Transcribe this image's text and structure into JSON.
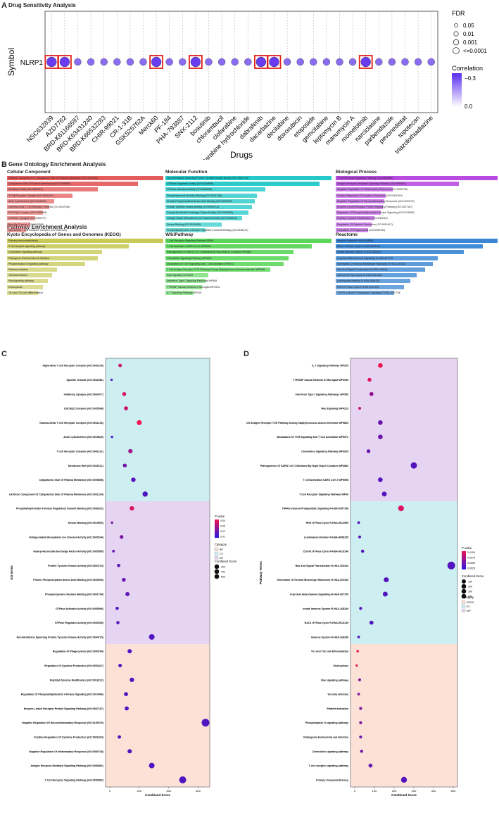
{
  "panelA": {
    "letter": "A",
    "title": "Drug Sensitivity Analysis",
    "ylabel": "Symbol",
    "xlabel": "Drugs",
    "gene": "NLRP1",
    "legend_fdr_title": "FDR",
    "legend_fdr_items": [
      "0.05",
      "0.01",
      "0.001",
      "<=0.0001"
    ],
    "legend_corr_title": "Correlation",
    "legend_corr_ticks": [
      "−0.3",
      "0.0"
    ]
  },
  "chart_data": [
    {
      "type": "scatter",
      "panel": "A",
      "title": "Drug Sensitivity Analysis",
      "xlabel": "Drugs",
      "ylabel": "Symbol",
      "y_categories": [
        "NLRP1"
      ],
      "categories": [
        "NSC632839",
        "AZD7762",
        "BRD-K61166597",
        "BRD-K63431240",
        "BRD-K66532283",
        "CHIR-99021",
        "CR-1-31B",
        "GSK525762A",
        "Merck60",
        "PF-184",
        "PHA-793887",
        "SNX-2112",
        "bosutinib",
        "chlorambucil",
        "clofarabine",
        "cytarabine hydrochloride",
        "dabrafenib",
        "dacarbazine",
        "decitabine",
        "doxorubicin",
        "etoposide",
        "gemcitabine",
        "leptomycin B",
        "manumycin A",
        "momelotinib",
        "narciclasine",
        "parbendazole",
        "pevonedistat",
        "topotecan",
        "triazolothiadiazine"
      ],
      "highlighted": [
        "NSC632839",
        "AZD7762",
        "Merck60",
        "SNX-2112",
        "dabrafenib",
        "dacarbazine",
        "momelotinib"
      ],
      "legend": {
        "fdr": [
          "0.05",
          "0.01",
          "0.001",
          "<=0.0001"
        ],
        "correlation_range": [
          -0.3,
          0.0
        ]
      },
      "grid": true
    },
    {
      "type": "bar",
      "panel": "B",
      "title": "Cellular Component",
      "categories": [
        "Extrinsic Component Of Cytoplasmic Side Of Plasma Membrane (GO:0031234)",
        "Cytoplasmic Side Of Plasma Membrane (GO:0009898)",
        "Membrane Raft (GO:0045121)",
        "T Cell Receptor Complex (GO:0042101)",
        "Actin Cytoskeleton (GO:0015629)",
        "Gamma-Delta T Cell Receptor Complex (GO:0042106)",
        "ESC/E(Z) Complex (GO:0035098)",
        "Inhibitory Synapse (GO:0060077)",
        "Specific Granule (GO:0042581)",
        "Alpha-Beta T Cell Receptor Complex (GO:0042105)"
      ],
      "values": [
        1.0,
        0.84,
        0.58,
        0.42,
        0.3,
        0.27,
        0.23,
        0.18,
        0.15,
        0.12
      ]
    },
    {
      "type": "bar",
      "panel": "B",
      "title": "Molecular Function",
      "categories": [
        "Non-Membrane Spanning Protein Tyrosine Kinase Activity (GO:0004715)",
        "GTPase Regulator Activity (GO:0030695)",
        "GTPase Activator Activity (GO:0005096)",
        "Phosphotyrosine Residue Binding (GO:0001784)",
        "Protein Phosphorylated Amino Acid Binding (GO:0045309)",
        "Protein Tyrosine Kinase Activity (GO:0004713)",
        "Guanyl-Nucleotide Exchange Factor Activity (GO:0005085)",
        "Voltage-Gated Monoatomic Ion Channel Activity (GO:0005244)",
        "Kinase Binding (GO:0019900)",
        "Phosphatidylinositol 3-Kinase Regulatory Subunit Binding (GO:0036312)"
      ],
      "values": [
        1.0,
        0.93,
        0.6,
        0.55,
        0.54,
        0.52,
        0.5,
        0.46,
        0.34,
        0.24
      ]
    },
    {
      "type": "bar",
      "panel": "B",
      "title": "Biological Process",
      "categories": [
        "T Cell Receptor Signaling Pathway (GO:0050852)",
        "Antigen Receptor-Mediated Signaling Pathway (GO:0050851)",
        "Negative Regulation Of Inflammatory Response (GO:0050728)",
        "Positive Regulation Of Cytokine Production (GO:0001819)",
        "Negative Regulation Of Neuroinflammatory Response (GO:0150079)",
        "Enzyme-Linked Receptor Protein Signaling Pathway (GO:0007167)",
        "Regulation Of Phosphatidylinositol 3-Kinase Signaling (GO:0014066)",
        "Peptidyl-Tyrosine Modification (GO:0018212)",
        "Regulation Of Cytokine Production (GO:0001817)",
        "Regulation Of Phagocytosis (GO:0050764)"
      ],
      "values": [
        1.0,
        0.76,
        0.35,
        0.31,
        0.3,
        0.29,
        0.28,
        0.24,
        0.22,
        0.2
      ]
    },
    {
      "type": "bar",
      "panel": "B",
      "title": "Kyoto Encyclopedia of Genes and Genomes (KEGG)",
      "categories": [
        "Primary immunodeficiency",
        "T cell receptor signaling pathway",
        "Chemokine signaling pathway",
        "Pathogenic Escherichia coli infection",
        "Phospholipase D signaling pathway",
        "Platelet activation",
        "Yersinia infection",
        "Ras signaling pathway",
        "Endocytosis",
        "Th1 and Th2 cell differentiation"
      ],
      "values": [
        1.0,
        0.78,
        0.61,
        0.58,
        0.5,
        0.32,
        0.29,
        0.26,
        0.23,
        0.2
      ]
    },
    {
      "type": "bar",
      "panel": "B",
      "title": "WikiPathway",
      "categories": [
        "T Cell Receptor Signaling Pathway WP69",
        "T Cell Activation SARS CoV 2 WP5098",
        "Pathogenesis Of SARS CoV 2 Mediated By Nsp9 Nsp10 Complex WP4884",
        "Chemokine Signaling Pathway WP3929",
        "Modulators Of TCR Signaling And T Cell Activation WP5072",
        "T Cell Antigen Receptor TCR Pathway During Staphylococcus Aureus Infection WP3863",
        "Ras Signaling WP4223",
        "Interferon Type I Signaling Pathways WP585",
        "TYROBP Causal Network In Microglia WP3945",
        "IL 7 Signaling Pathway WP205"
      ],
      "values": [
        1.0,
        0.88,
        0.77,
        0.74,
        0.71,
        0.63,
        0.26,
        0.24,
        0.22,
        0.17
      ]
    },
    {
      "type": "bar",
      "panel": "B",
      "title": "Reactome",
      "categories": [
        "Immune System R-HSA-168256",
        "RAC1 GTPase Cycle R-HSA-9013149",
        "Innate Immune System R-HSA-168249",
        "G-protein Beta:Gamma Signalling R-HSA-397795",
        "Generation Of Second Messenger Molecules R-HSA-202433",
        "Ras And Signal Transduction R-HSA-166444",
        "CDC42 GTPase Cycle R-HSA-9013148",
        "Leishmania Infection R-HSA-9658195",
        "RHO GTPase Cycle R-HSA-9012999",
        "TNFR1-induced Proapoptotic Signaling R-HSA-5357786"
      ],
      "values": [
        1.0,
        0.91,
        0.79,
        0.63,
        0.6,
        0.55,
        0.5,
        0.46,
        0.42,
        0.36
      ]
    },
    {
      "type": "scatter",
      "panel": "C",
      "xlabel": "Combined Score",
      "ylabel": "GO terms",
      "xlim": [
        0,
        650
      ],
      "x_ticks": [
        "0",
        "200",
        "400",
        "600"
      ],
      "series": [
        {
          "name": "CC",
          "labels": [
            "Alpha-Beta T Cell Receptor Complex (GO:0042105)",
            "Specific Granule (GO:0042581)",
            "Inhibitory Synapse (GO:0060077)",
            "ESC/E(Z) Complex (GO:0035098)",
            "Gamma-Delta T Cell Receptor Complex (GO:0042106)",
            "Actin Cytoskeleton (GO:0015629)",
            "T Cell Receptor Complex (GO:0042101)",
            "Membrane Raft (GO:0045121)",
            "Cytoplasmic Side Of Plasma Membrane (GO:0009898)",
            "Extrinsic Component Of Cytoplasmic Side Of Plasma Membrane (GO:0031234)"
          ],
          "x": [
            70,
            12,
            98,
            110,
            200,
            15,
            140,
            102,
            160,
            240
          ],
          "p": [
            0.04,
            0.01,
            0.045,
            0.04,
            0.05,
            0.01,
            0.03,
            0.02,
            0.012,
            0.01
          ]
        },
        {
          "name": "MF",
          "labels": [
            "Phosphatidylinositol 3-Kinase Regulatory Subunit Binding (GO:0036312)",
            "Kinase Binding (GO:0019900)",
            "Voltage-Gated Monoatomic Ion Channel Activity (GO:0005244)",
            "Guanyl-Nucleotide Exchange Factor Activity (GO:0005085)",
            "Protein Tyrosine Kinase Activity (GO:0004713)",
            "Protein Phosphorylated Amino Acid Binding (GO:0045309)",
            "Phosphotyrosine Residue Binding (GO:0001784)",
            "GTPase Activator Activity (GO:0005096)",
            "GTPase Regulator Activity (GO:0030695)",
            "Non-Membrane Spanning Protein Tyrosine Kinase Activity (GO:0004715)"
          ],
          "x": [
            150,
            15,
            80,
            25,
            60,
            95,
            120,
            50,
            55,
            285
          ],
          "p": [
            0.045,
            0.02,
            0.02,
            0.015,
            0.012,
            0.015,
            0.012,
            0.01,
            0.01,
            0.01
          ]
        },
        {
          "name": "BP",
          "labels": [
            "Regulation Of Phagocytosis (GO:0050764)",
            "Regulation Of Cytokine Production (GO:0001817)",
            "Peptidyl-Tyrosine Modification (GO:0018212)",
            "Regulation Of Phosphatidylinositol 3-Kinase Signaling (GO:0014066)",
            "Enzyme-Linked Receptor Protein Signaling Pathway (GO:0007167)",
            "Negative Regulation Of Neuroinflammatory Response (GO:0150079)",
            "Positive Regulation Of Cytokine Production (GO:0001819)",
            "Negative Regulation Of Inflammatory Response (GO:0050728)",
            "Antigen Receptor-Mediated Signaling Pathway (GO:0050851)",
            "T Cell Receptor Signaling Pathway (GO:0050852)"
          ],
          "x": [
            135,
            70,
            150,
            110,
            115,
            650,
            65,
            135,
            285,
            495
          ],
          "p": [
            0.01,
            0.01,
            0.01,
            0.01,
            0.01,
            0.01,
            0.01,
            0.01,
            0.01,
            0.01
          ]
        }
      ],
      "legend": {
        "pvalue_title": "P-value",
        "pvalue_ticks": [
          "0.04",
          "0.03",
          "0.02",
          "0.01"
        ],
        "category_title": "Category",
        "categories": [
          "BP",
          "CC",
          "MF"
        ],
        "size_title": "Combined Score",
        "size_ticks": [
          "200",
          "400",
          "600"
        ]
      }
    },
    {
      "type": "scatter",
      "panel": "D",
      "xlabel": "Combined Score",
      "ylabel": "Pathway Terms",
      "xlim": [
        0,
        500
      ],
      "x_ticks": [
        "0",
        "100",
        "200",
        "300",
        "400",
        "500"
      ],
      "series": [
        {
          "name": "WP",
          "labels": [
            "IL 7 Signaling Pathway WP205",
            "TYROBP Causal Network In Microglia WP3945",
            "Interferon Type I Signaling Pathways WP585",
            "Ras Signaling WP4223",
            "T Cell Antigen Receptor TCR Pathway During Staphylococcus Aureus Infection WP3863",
            "Modulators Of TCR Signaling And T Cell Activation WP5072",
            "Chemokine Signaling Pathway WP3929",
            "Pathogenesis Of SARS CoV 2 Mediated By Nsp9 Nsp10 Complex WP4884",
            "T Cell Activation SARS CoV 2 WP5098",
            "T Cell Receptor Signaling Pathway WP69"
          ],
          "x": [
            130,
            75,
            85,
            25,
            130,
            130,
            70,
            300,
            130,
            150
          ],
          "p": [
            0.009,
            0.008,
            0.005,
            0.007,
            0.003,
            0.003,
            0.003,
            0.002,
            0.002,
            0.002
          ]
        },
        {
          "name": "RT",
          "labels": [
            "TNFR1-induced Proapoptotic Signaling R-HSA-5357786",
            "RHO GTPase Cycle R-HSA-9012999",
            "Leishmania Infection R-HSA-9658195",
            "CDC42 GTPase Cycle R-HSA-9013148",
            "Ras And Signal Transduction R-HSA-166444",
            "Generation Of Second Messenger Molecules R-HSA-202433",
            "G-protein Beta:Gamma Signalling R-HSA-397795",
            "Innate Immune System R-HSA-168249",
            "RAC1 GTPase Cycle R-HSA-9013149",
            "Immune System R-HSA-168256"
          ],
          "x": [
            235,
            20,
            25,
            40,
            490,
            160,
            155,
            30,
            85,
            20
          ],
          "p": [
            0.008,
            0.002,
            0.002,
            0.002,
            0.002,
            0.002,
            0.002,
            0.002,
            0.002,
            0.002
          ]
        },
        {
          "name": "KEGG",
          "labels": [
            "Th1 and Th2 cell differentiation",
            "Endocytosis",
            "Ras signaling pathway",
            "Yersinia infection",
            "Platelet activation",
            "Phospholipase D signaling pathway",
            "Pathogenic Escherichia coli infection",
            "Chemokine signaling pathway",
            "T cell receptor signaling pathway",
            "Primary immunodeficiency"
          ],
          "x": [
            15,
            10,
            25,
            20,
            30,
            30,
            30,
            35,
            80,
            250
          ],
          "p": [
            0.009,
            0.009,
            0.004,
            0.004,
            0.004,
            0.004,
            0.003,
            0.003,
            0.003,
            0.002
          ]
        }
      ],
      "legend": {
        "pvalue_title": "P-value",
        "pvalue_ticks": [
          "0.0100",
          "0.0075",
          "0.0050",
          "0.0025"
        ],
        "size_title": "Combined Score",
        "size_ticks": [
          "100",
          "200",
          "300",
          "400"
        ],
        "category_title": "Category",
        "categories": [
          "KEGG",
          "RT",
          "WP"
        ]
      }
    }
  ],
  "panelB": {
    "letter": "B",
    "title": "Gene Ontology Enrichment Analysis",
    "title2": "Pathway Enrichment Analysis"
  },
  "panelC": {
    "letter": "C"
  },
  "panelD": {
    "letter": "D"
  },
  "colors": {
    "cc": "#e35b5b",
    "mf": "#25c9c9",
    "bp": "#b84be0",
    "kegg": "#c9c95a",
    "wiki": "#5ad65a",
    "reactome": "#3a86d4",
    "bg_cc": "#cdeff2",
    "bg_mf": "#e6d4f3",
    "bg_bp": "#fbe1d6",
    "blue": "#2b1bd9",
    "red": "#e01050"
  }
}
